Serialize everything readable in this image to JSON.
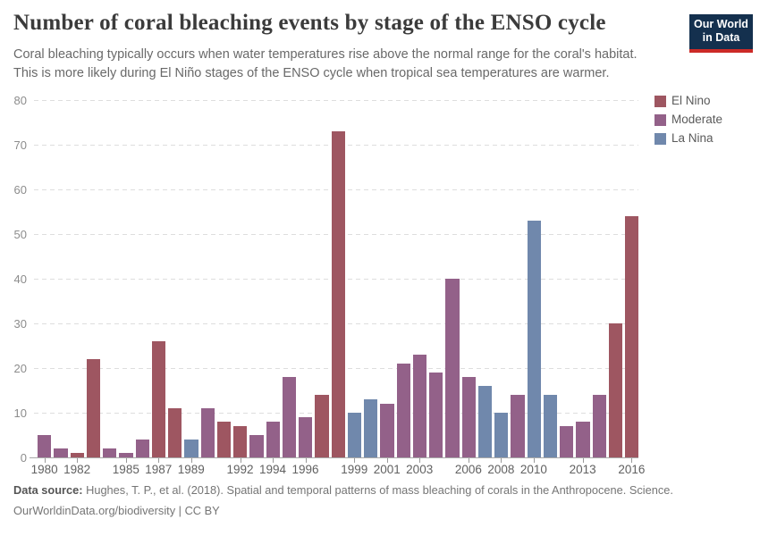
{
  "header": {
    "title": "Number of coral bleaching events by stage of the ENSO cycle",
    "subtitle_line1": "Coral bleaching typically occurs when water temperatures rise above the normal range for the coral's habitat.",
    "subtitle_line2": "This is more likely during El Niño stages of the ENSO cycle when tropical sea temperatures are warmer.",
    "logo": {
      "line1": "Our World",
      "line2": "in Data",
      "bg_color": "#14304e",
      "accent_color": "#cc2a27"
    }
  },
  "legend": [
    {
      "key": "E",
      "label": "El Nino",
      "color": "#9e5661"
    },
    {
      "key": "M",
      "label": "Moderate",
      "color": "#936189"
    },
    {
      "key": "L",
      "label": "La Nina",
      "color": "#7088ac"
    }
  ],
  "chart_data": {
    "type": "bar",
    "title": "Number of coral bleaching events by stage of the ENSO cycle",
    "categories": [
      "1980",
      "1981",
      "1982",
      "1983",
      "1984",
      "1985",
      "1986",
      "1987",
      "1988",
      "1989",
      "1990",
      "1991",
      "1992",
      "1993",
      "1994",
      "1995",
      "1996",
      "1997",
      "1998",
      "1999",
      "2000",
      "2001",
      "2002",
      "2003",
      "2004",
      "2005",
      "2006",
      "2007",
      "2008",
      "2009",
      "2010",
      "2011",
      "2012",
      "2013",
      "2014",
      "2015",
      "2016"
    ],
    "values": [
      5,
      2,
      1,
      22,
      2,
      1,
      4,
      26,
      11,
      4,
      11,
      8,
      7,
      5,
      8,
      18,
      9,
      14,
      73,
      10,
      13,
      12,
      21,
      23,
      19,
      40,
      18,
      16,
      10,
      14,
      53,
      14,
      7,
      8,
      14,
      30,
      54
    ],
    "phases": [
      "M",
      "M",
      "E",
      "E",
      "M",
      "M",
      "M",
      "E",
      "E",
      "L",
      "M",
      "E",
      "E",
      "M",
      "M",
      "M",
      "M",
      "E",
      "E",
      "L",
      "L",
      "M",
      "M",
      "M",
      "M",
      "M",
      "M",
      "L",
      "L",
      "M",
      "L",
      "L",
      "M",
      "M",
      "M",
      "E",
      "E"
    ],
    "phase_names": {
      "E": "El Nino",
      "M": "Moderate",
      "L": "La Nina"
    },
    "phase_colors": {
      "E": "#9e5661",
      "M": "#936189",
      "L": "#7088ac"
    },
    "ylim": [
      0,
      80
    ],
    "yticks": [
      0,
      10,
      20,
      30,
      40,
      50,
      60,
      70,
      80
    ],
    "xtick_labels": [
      "1980",
      "1982",
      "1985",
      "1987",
      "1989",
      "1992",
      "1994",
      "1996",
      "1999",
      "2001",
      "2003",
      "2006",
      "2008",
      "2010",
      "2013",
      "2016"
    ],
    "grid": "horizontal-dashed",
    "legend_position": "right",
    "xlabel": "",
    "ylabel": ""
  },
  "footer": {
    "source_label": "Data source:",
    "source_text": " Hughes, T. P., et al. (2018). Spatial and temporal patterns of mass bleaching of corals in the Anthropocene. Science.",
    "link_text": "OurWorldinData.org/biodiversity",
    "separator": " | ",
    "license_text": "CC BY"
  }
}
